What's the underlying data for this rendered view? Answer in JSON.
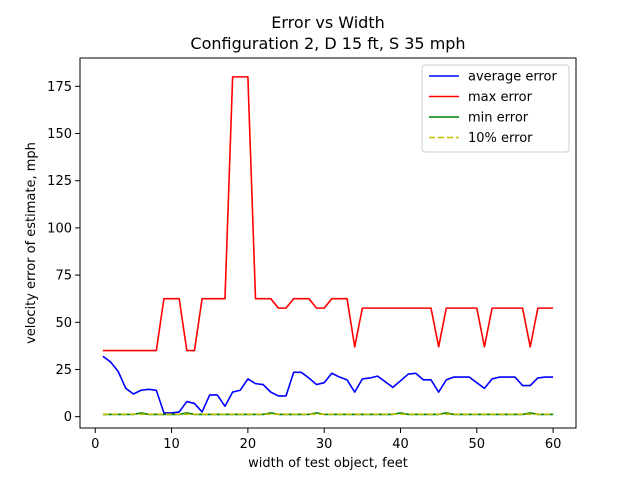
{
  "chart_data": {
    "type": "line",
    "title": "Error vs Width",
    "subtitle": "Configuration 2, D 15 ft, S 35 mph",
    "xlabel": "width of test object, feet",
    "ylabel": "velocity error of estimate, mph",
    "xlim": [
      -2,
      63
    ],
    "ylim": [
      -6,
      190
    ],
    "xticks": [
      0,
      10,
      20,
      30,
      40,
      50,
      60
    ],
    "yticks": [
      0,
      25,
      50,
      75,
      100,
      125,
      150,
      175
    ],
    "grid": false,
    "legend_position": "top-right",
    "x": [
      1,
      2,
      3,
      4,
      5,
      6,
      7,
      8,
      9,
      10,
      11,
      12,
      13,
      14,
      15,
      16,
      17,
      18,
      19,
      20,
      21,
      22,
      23,
      24,
      25,
      26,
      27,
      28,
      29,
      30,
      31,
      32,
      33,
      34,
      35,
      36,
      37,
      38,
      39,
      40,
      41,
      42,
      43,
      44,
      45,
      46,
      47,
      48,
      49,
      50,
      51,
      52,
      53,
      54,
      55,
      56,
      57,
      58,
      59,
      60
    ],
    "series": [
      {
        "name": "average error",
        "color": "#0000ff",
        "dashed": false,
        "values": [
          32,
          29,
          24,
          15,
          12,
          14,
          14.5,
          14,
          2,
          2,
          2.5,
          8,
          7,
          2.5,
          11.5,
          11.5,
          5.5,
          13,
          14,
          20,
          17.5,
          17,
          13,
          11,
          11,
          23.5,
          23.5,
          20.5,
          17,
          18,
          23,
          21,
          19.5,
          13,
          20,
          20.5,
          21.5,
          18.5,
          15.5,
          19,
          22.5,
          23,
          19.5,
          19.5,
          13,
          19.5,
          21,
          21,
          21,
          18,
          15,
          20,
          21,
          21,
          21,
          16.5,
          16.5,
          20.5,
          21,
          21
        ]
      },
      {
        "name": "max error",
        "color": "#ff0000",
        "dashed": false,
        "values": [
          35,
          35,
          35,
          35,
          35,
          35,
          35,
          35,
          62.5,
          62.5,
          62.5,
          35,
          35,
          62.5,
          62.5,
          62.5,
          62.5,
          180,
          180,
          180,
          62.5,
          62.5,
          62.5,
          57.5,
          57.5,
          62.5,
          62.5,
          62.5,
          57.5,
          57.5,
          62.5,
          62.5,
          62.5,
          37,
          57.5,
          57.5,
          57.5,
          57.5,
          57.5,
          57.5,
          57.5,
          57.5,
          57.5,
          57.5,
          37,
          57.5,
          57.5,
          57.5,
          57.5,
          57.5,
          37,
          57.5,
          57.5,
          57.5,
          57.5,
          57.5,
          37,
          57.5,
          57.5,
          57.5
        ]
      },
      {
        "name": "min error",
        "color": "#008000",
        "dashed": false,
        "values": [
          1.2,
          1.2,
          1.2,
          1.2,
          1.2,
          2,
          1.2,
          1.2,
          1.2,
          1.2,
          1.2,
          2,
          1.2,
          1.2,
          1.2,
          1.2,
          1.2,
          1.2,
          1.2,
          1.2,
          1.2,
          1.2,
          2,
          1.2,
          1.2,
          1.2,
          1.2,
          1.2,
          2,
          1.2,
          1.2,
          1.2,
          1.2,
          1.2,
          1.2,
          1.2,
          1.2,
          1.2,
          1.2,
          2,
          1.2,
          1.2,
          1.2,
          1.2,
          1.2,
          2,
          1.2,
          1.2,
          1.2,
          1.2,
          1.2,
          1.2,
          1.2,
          1.2,
          1.2,
          1.2,
          2,
          1.2,
          1.2,
          1.2
        ]
      },
      {
        "name": "10% error",
        "color": "#bfbf00",
        "dashed": true,
        "values": [
          1.3,
          1.3,
          1.3,
          1.3,
          1.3,
          1.3,
          1.3,
          1.3,
          1.3,
          1.3,
          1.3,
          1.3,
          1.3,
          1.3,
          1.3,
          1.3,
          1.3,
          1.3,
          1.3,
          1.3,
          1.3,
          1.3,
          1.3,
          1.3,
          1.3,
          1.3,
          1.3,
          1.3,
          1.3,
          1.3,
          1.3,
          1.3,
          1.3,
          1.3,
          1.3,
          1.3,
          1.3,
          1.3,
          1.3,
          1.3,
          1.3,
          1.3,
          1.3,
          1.3,
          1.3,
          1.3,
          1.3,
          1.3,
          1.3,
          1.3,
          1.3,
          1.3,
          1.3,
          1.3,
          1.3,
          1.3,
          1.3,
          1.3,
          1.3,
          1.3
        ]
      }
    ]
  }
}
